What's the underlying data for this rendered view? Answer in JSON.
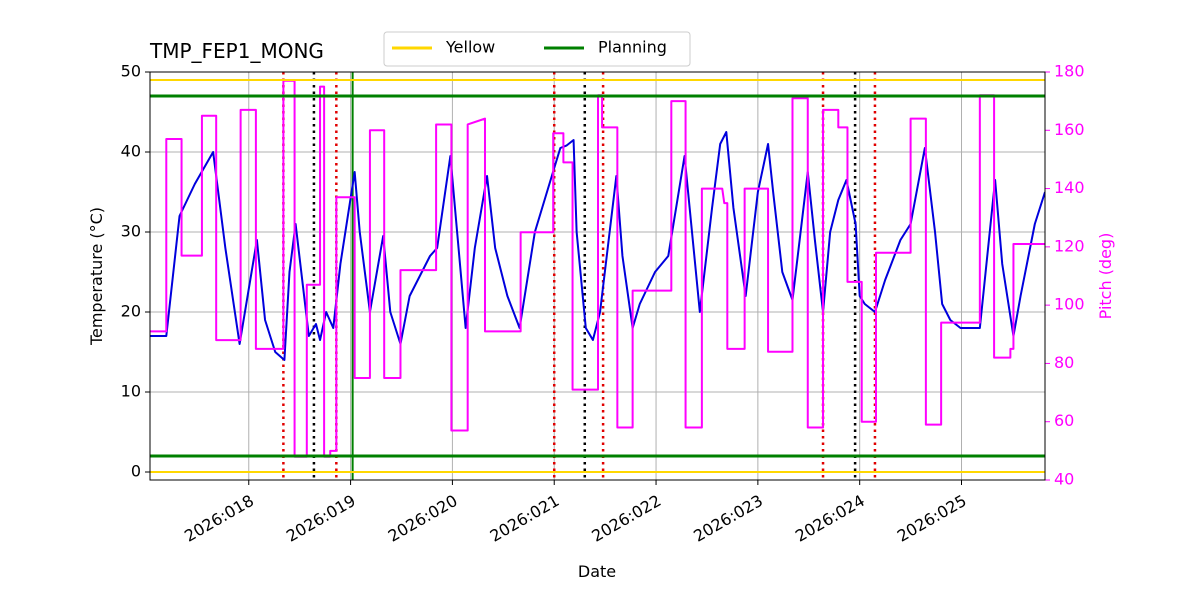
{
  "chart_data": {
    "type": "line",
    "title": "TMP_FEP1_MONG",
    "xlabel": "Date",
    "ylabel": "Temperature (°C)",
    "y2label": "Pitch (deg)",
    "xlim": [
      17.03,
      25.82
    ],
    "ylim": [
      -1,
      50
    ],
    "y2lim": [
      40,
      180
    ],
    "xticks": [
      {
        "value": 18,
        "label": "2026:018"
      },
      {
        "value": 19,
        "label": "2026:019"
      },
      {
        "value": 20,
        "label": "2026:020"
      },
      {
        "value": 21,
        "label": "2026:021"
      },
      {
        "value": 22,
        "label": "2026:022"
      },
      {
        "value": 23,
        "label": "2026:023"
      },
      {
        "value": 24,
        "label": "2026:024"
      },
      {
        "value": 25,
        "label": "2026:025"
      }
    ],
    "yticks": [
      0,
      10,
      20,
      30,
      40,
      50
    ],
    "y2ticks": [
      40,
      60,
      80,
      100,
      120,
      140,
      160,
      180
    ],
    "grid": true,
    "y2color": "#ff00ff",
    "hlines": [
      {
        "name": "Yellow",
        "color": "#ffd700",
        "values": [
          49,
          0
        ]
      },
      {
        "name": "Planning",
        "color": "#008000",
        "values": [
          47,
          2
        ]
      }
    ],
    "vlines": [
      {
        "x": 18.34,
        "color": "#e00000",
        "style": "dotted"
      },
      {
        "x": 18.86,
        "color": "#e00000",
        "style": "dotted"
      },
      {
        "x": 21.0,
        "color": "#e00000",
        "style": "dotted"
      },
      {
        "x": 21.48,
        "color": "#e00000",
        "style": "dotted"
      },
      {
        "x": 23.64,
        "color": "#e00000",
        "style": "dotted"
      },
      {
        "x": 24.15,
        "color": "#e00000",
        "style": "dotted"
      },
      {
        "x": 18.64,
        "color": "#000000",
        "style": "dotted"
      },
      {
        "x": 21.3,
        "color": "#000000",
        "style": "dotted"
      },
      {
        "x": 23.955,
        "color": "#000000",
        "style": "dotted"
      },
      {
        "x": 19.02,
        "color": "#008000",
        "style": "solid"
      }
    ],
    "series": [
      {
        "color": "#0000dd",
        "axis": "y",
        "x": [
          17.03,
          17.19,
          17.32,
          17.47,
          17.65,
          17.77,
          17.91,
          18.08,
          18.16,
          18.26,
          18.35,
          18.4,
          18.46,
          18.59,
          18.66,
          18.7,
          18.76,
          18.83,
          18.9,
          19.04,
          19.09,
          19.19,
          19.32,
          19.39,
          19.49,
          19.58,
          19.78,
          19.85,
          19.98,
          20.13,
          20.22,
          20.34,
          20.42,
          20.54,
          20.66,
          20.81,
          21.0,
          21.06,
          21.12,
          21.19,
          21.22,
          21.31,
          21.38,
          21.45,
          21.61,
          21.67,
          21.77,
          21.84,
          21.99,
          22.12,
          22.28,
          22.43,
          22.55,
          22.63,
          22.69,
          22.76,
          22.88,
          23.0,
          23.1,
          23.15,
          23.24,
          23.34,
          23.49,
          23.56,
          23.64,
          23.71,
          23.79,
          23.87,
          23.96,
          24.0,
          24.05,
          24.15,
          24.25,
          24.4,
          24.5,
          24.64,
          24.74,
          24.81,
          24.89,
          24.99,
          25.18,
          25.33,
          25.4,
          25.51,
          25.58,
          25.72,
          25.82
        ],
        "values": [
          17,
          17,
          32,
          36,
          40,
          28,
          16,
          29,
          19,
          15,
          14,
          25,
          31,
          17,
          18.5,
          16.5,
          20,
          18,
          26,
          37.5,
          30,
          20,
          29.5,
          20,
          16,
          22,
          27,
          28,
          39.5,
          18,
          28,
          37,
          28,
          22,
          18,
          30,
          38,
          40.5,
          40.8,
          41.5,
          30,
          18,
          16.5,
          20,
          37,
          27,
          18,
          21,
          25,
          27,
          39.5,
          20,
          33,
          41,
          42.5,
          33,
          22,
          35,
          41,
          35,
          25,
          21.5,
          37.5,
          29,
          20,
          30,
          34,
          36.5,
          31,
          22,
          21,
          20,
          24,
          29,
          31,
          40.5,
          30,
          21,
          19,
          18,
          18,
          36.5,
          26,
          17,
          22,
          31,
          35
        ]
      },
      {
        "color": "#ff00ff",
        "axis": "y2",
        "x": [
          17.03,
          17.19,
          17.19,
          17.34,
          17.34,
          17.54,
          17.54,
          17.68,
          17.68,
          17.92,
          17.92,
          18.07,
          18.07,
          18.34,
          18.34,
          18.45,
          18.45,
          18.57,
          18.57,
          18.7,
          18.7,
          18.74,
          18.74,
          18.8,
          18.8,
          18.86,
          18.86,
          19.04,
          19.04,
          19.19,
          19.19,
          19.33,
          19.33,
          19.49,
          19.49,
          19.84,
          19.84,
          19.99,
          19.99,
          20.15,
          20.15,
          20.32,
          20.32,
          20.67,
          20.67,
          20.99,
          20.99,
          21.09,
          21.09,
          21.18,
          21.18,
          21.43,
          21.43,
          21.47,
          21.47,
          21.62,
          21.62,
          21.77,
          21.77,
          22.15,
          22.15,
          22.29,
          22.29,
          22.45,
          22.45,
          22.65,
          22.67,
          22.7,
          22.7,
          22.87,
          22.87,
          23.1,
          23.1,
          23.34,
          23.34,
          23.49,
          23.49,
          23.64,
          23.64,
          23.79,
          23.79,
          23.88,
          23.88,
          24.02,
          24.02,
          24.16,
          24.16,
          24.5,
          24.5,
          24.65,
          24.65,
          24.8,
          24.8,
          25.18,
          25.18,
          25.32,
          25.32,
          25.48,
          25.48,
          25.51,
          25.51,
          25.82
        ],
        "values": [
          91,
          91,
          157,
          157,
          117,
          117,
          165,
          165,
          88,
          88,
          167,
          167,
          85,
          85,
          177,
          177,
          48,
          48,
          107,
          107,
          175,
          175,
          48,
          48,
          50,
          50,
          137,
          137,
          75,
          75,
          160,
          160,
          75,
          75,
          112,
          112,
          162,
          162,
          57,
          57,
          162,
          164,
          91,
          91,
          125,
          125,
          159,
          159,
          149,
          149,
          71,
          71,
          172,
          172,
          161,
          161,
          58,
          58,
          105,
          105,
          170,
          170,
          58,
          58,
          140,
          140,
          135,
          135,
          85,
          85,
          140,
          140,
          84,
          84,
          171,
          171,
          58,
          58,
          167,
          167,
          161,
          161,
          108,
          108,
          60,
          60,
          118,
          118,
          164,
          164,
          59,
          59,
          94,
          94,
          172,
          172,
          82,
          82,
          85,
          85,
          121,
          121
        ]
      }
    ]
  }
}
